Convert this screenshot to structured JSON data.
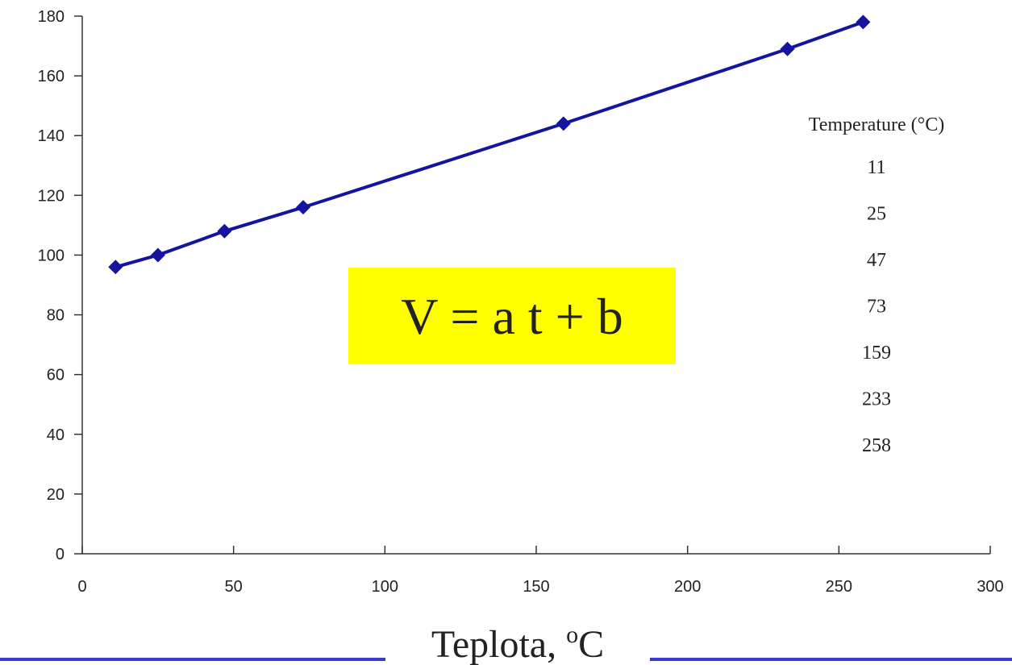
{
  "chart_data": {
    "type": "line",
    "x": [
      11,
      25,
      47,
      73,
      159,
      233,
      258
    ],
    "series": [
      {
        "color": "#1414a0",
        "values": [
          96,
          100,
          108,
          116,
          144,
          169,
          178
        ]
      }
    ],
    "xlim": [
      0,
      300
    ],
    "xticks": [
      0,
      50,
      100,
      150,
      200,
      250,
      300
    ],
    "ylim": [
      0,
      180
    ],
    "yticks": [
      0,
      20,
      40,
      60,
      80,
      100,
      120,
      140,
      160,
      180
    ],
    "grid": false,
    "markers": "diamond",
    "annotation": "V = a t + b",
    "table_header": "Temperature (°C)",
    "xlabel": {
      "text": "Teplota, ",
      "superscript": "o",
      "unit": "C"
    }
  }
}
